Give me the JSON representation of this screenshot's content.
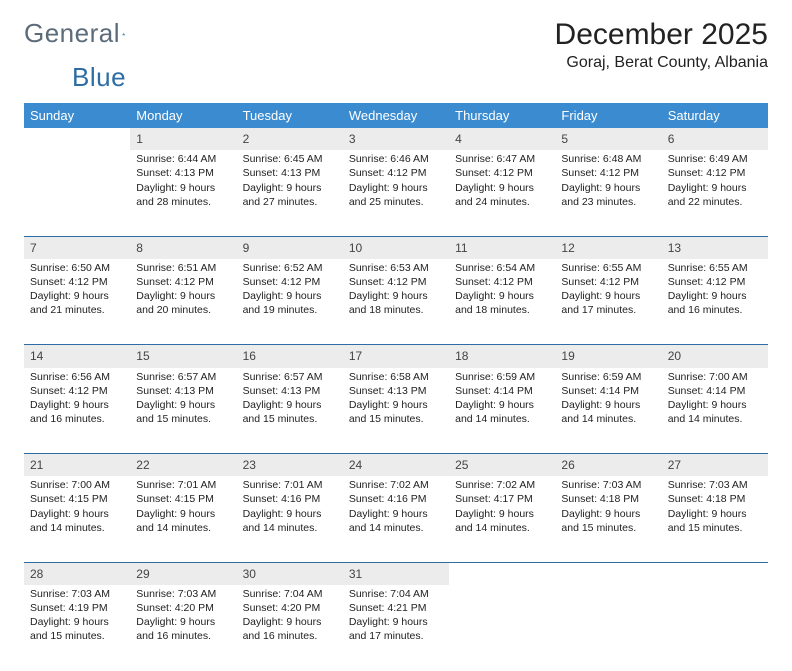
{
  "logo": {
    "word1": "General",
    "word2": "Blue",
    "accent_color": "#2e6da4",
    "text_color": "#5b6b79"
  },
  "title": "December 2025",
  "location": "Goraj, Berat County, Albania",
  "colors": {
    "header_bg": "#3b8bd0",
    "header_text": "#ffffff",
    "daynum_bg": "#ececec",
    "row_divider": "#2e6da4",
    "page_bg": "#ffffff",
    "body_text": "#222222"
  },
  "weekdays": [
    "Sunday",
    "Monday",
    "Tuesday",
    "Wednesday",
    "Thursday",
    "Friday",
    "Saturday"
  ],
  "weeks": [
    {
      "nums": [
        "",
        "1",
        "2",
        "3",
        "4",
        "5",
        "6"
      ],
      "cells": [
        null,
        {
          "sunrise": "Sunrise: 6:44 AM",
          "sunset": "Sunset: 4:13 PM",
          "day1": "Daylight: 9 hours",
          "day2": "and 28 minutes."
        },
        {
          "sunrise": "Sunrise: 6:45 AM",
          "sunset": "Sunset: 4:13 PM",
          "day1": "Daylight: 9 hours",
          "day2": "and 27 minutes."
        },
        {
          "sunrise": "Sunrise: 6:46 AM",
          "sunset": "Sunset: 4:12 PM",
          "day1": "Daylight: 9 hours",
          "day2": "and 25 minutes."
        },
        {
          "sunrise": "Sunrise: 6:47 AM",
          "sunset": "Sunset: 4:12 PM",
          "day1": "Daylight: 9 hours",
          "day2": "and 24 minutes."
        },
        {
          "sunrise": "Sunrise: 6:48 AM",
          "sunset": "Sunset: 4:12 PM",
          "day1": "Daylight: 9 hours",
          "day2": "and 23 minutes."
        },
        {
          "sunrise": "Sunrise: 6:49 AM",
          "sunset": "Sunset: 4:12 PM",
          "day1": "Daylight: 9 hours",
          "day2": "and 22 minutes."
        }
      ]
    },
    {
      "nums": [
        "7",
        "8",
        "9",
        "10",
        "11",
        "12",
        "13"
      ],
      "cells": [
        {
          "sunrise": "Sunrise: 6:50 AM",
          "sunset": "Sunset: 4:12 PM",
          "day1": "Daylight: 9 hours",
          "day2": "and 21 minutes."
        },
        {
          "sunrise": "Sunrise: 6:51 AM",
          "sunset": "Sunset: 4:12 PM",
          "day1": "Daylight: 9 hours",
          "day2": "and 20 minutes."
        },
        {
          "sunrise": "Sunrise: 6:52 AM",
          "sunset": "Sunset: 4:12 PM",
          "day1": "Daylight: 9 hours",
          "day2": "and 19 minutes."
        },
        {
          "sunrise": "Sunrise: 6:53 AM",
          "sunset": "Sunset: 4:12 PM",
          "day1": "Daylight: 9 hours",
          "day2": "and 18 minutes."
        },
        {
          "sunrise": "Sunrise: 6:54 AM",
          "sunset": "Sunset: 4:12 PM",
          "day1": "Daylight: 9 hours",
          "day2": "and 18 minutes."
        },
        {
          "sunrise": "Sunrise: 6:55 AM",
          "sunset": "Sunset: 4:12 PM",
          "day1": "Daylight: 9 hours",
          "day2": "and 17 minutes."
        },
        {
          "sunrise": "Sunrise: 6:55 AM",
          "sunset": "Sunset: 4:12 PM",
          "day1": "Daylight: 9 hours",
          "day2": "and 16 minutes."
        }
      ]
    },
    {
      "nums": [
        "14",
        "15",
        "16",
        "17",
        "18",
        "19",
        "20"
      ],
      "cells": [
        {
          "sunrise": "Sunrise: 6:56 AM",
          "sunset": "Sunset: 4:12 PM",
          "day1": "Daylight: 9 hours",
          "day2": "and 16 minutes."
        },
        {
          "sunrise": "Sunrise: 6:57 AM",
          "sunset": "Sunset: 4:13 PM",
          "day1": "Daylight: 9 hours",
          "day2": "and 15 minutes."
        },
        {
          "sunrise": "Sunrise: 6:57 AM",
          "sunset": "Sunset: 4:13 PM",
          "day1": "Daylight: 9 hours",
          "day2": "and 15 minutes."
        },
        {
          "sunrise": "Sunrise: 6:58 AM",
          "sunset": "Sunset: 4:13 PM",
          "day1": "Daylight: 9 hours",
          "day2": "and 15 minutes."
        },
        {
          "sunrise": "Sunrise: 6:59 AM",
          "sunset": "Sunset: 4:14 PM",
          "day1": "Daylight: 9 hours",
          "day2": "and 14 minutes."
        },
        {
          "sunrise": "Sunrise: 6:59 AM",
          "sunset": "Sunset: 4:14 PM",
          "day1": "Daylight: 9 hours",
          "day2": "and 14 minutes."
        },
        {
          "sunrise": "Sunrise: 7:00 AM",
          "sunset": "Sunset: 4:14 PM",
          "day1": "Daylight: 9 hours",
          "day2": "and 14 minutes."
        }
      ]
    },
    {
      "nums": [
        "21",
        "22",
        "23",
        "24",
        "25",
        "26",
        "27"
      ],
      "cells": [
        {
          "sunrise": "Sunrise: 7:00 AM",
          "sunset": "Sunset: 4:15 PM",
          "day1": "Daylight: 9 hours",
          "day2": "and 14 minutes."
        },
        {
          "sunrise": "Sunrise: 7:01 AM",
          "sunset": "Sunset: 4:15 PM",
          "day1": "Daylight: 9 hours",
          "day2": "and 14 minutes."
        },
        {
          "sunrise": "Sunrise: 7:01 AM",
          "sunset": "Sunset: 4:16 PM",
          "day1": "Daylight: 9 hours",
          "day2": "and 14 minutes."
        },
        {
          "sunrise": "Sunrise: 7:02 AM",
          "sunset": "Sunset: 4:16 PM",
          "day1": "Daylight: 9 hours",
          "day2": "and 14 minutes."
        },
        {
          "sunrise": "Sunrise: 7:02 AM",
          "sunset": "Sunset: 4:17 PM",
          "day1": "Daylight: 9 hours",
          "day2": "and 14 minutes."
        },
        {
          "sunrise": "Sunrise: 7:03 AM",
          "sunset": "Sunset: 4:18 PM",
          "day1": "Daylight: 9 hours",
          "day2": "and 15 minutes."
        },
        {
          "sunrise": "Sunrise: 7:03 AM",
          "sunset": "Sunset: 4:18 PM",
          "day1": "Daylight: 9 hours",
          "day2": "and 15 minutes."
        }
      ]
    },
    {
      "nums": [
        "28",
        "29",
        "30",
        "31",
        "",
        "",
        ""
      ],
      "cells": [
        {
          "sunrise": "Sunrise: 7:03 AM",
          "sunset": "Sunset: 4:19 PM",
          "day1": "Daylight: 9 hours",
          "day2": "and 15 minutes."
        },
        {
          "sunrise": "Sunrise: 7:03 AM",
          "sunset": "Sunset: 4:20 PM",
          "day1": "Daylight: 9 hours",
          "day2": "and 16 minutes."
        },
        {
          "sunrise": "Sunrise: 7:04 AM",
          "sunset": "Sunset: 4:20 PM",
          "day1": "Daylight: 9 hours",
          "day2": "and 16 minutes."
        },
        {
          "sunrise": "Sunrise: 7:04 AM",
          "sunset": "Sunset: 4:21 PM",
          "day1": "Daylight: 9 hours",
          "day2": "and 17 minutes."
        },
        null,
        null,
        null
      ]
    }
  ]
}
